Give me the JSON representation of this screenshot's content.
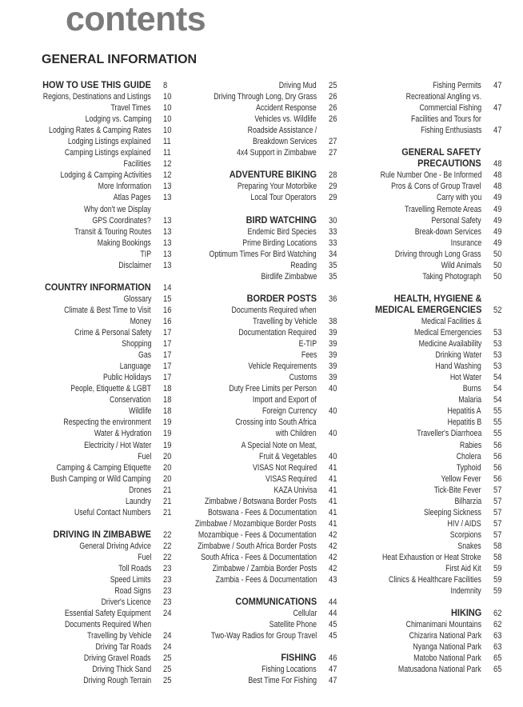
{
  "title": "contents",
  "section_title": "GENERAL INFORMATION",
  "columns": [
    [
      {
        "t": "HOW TO USE THIS GUIDE",
        "p": "8",
        "h": true
      },
      {
        "t": "Regions, Destinations and Listings",
        "p": "10"
      },
      {
        "t": "Travel Times",
        "p": "10"
      },
      {
        "t": "Lodging vs. Camping",
        "p": "10"
      },
      {
        "t": "Lodging Rates & Camping Rates",
        "p": "10"
      },
      {
        "t": "Lodging Listings explained",
        "p": "11"
      },
      {
        "t": "Camping Listings explained",
        "p": "11"
      },
      {
        "t": "Facilities",
        "p": "12"
      },
      {
        "t": "Lodging & Camping Activities",
        "p": "12"
      },
      {
        "t": "More Information",
        "p": "13"
      },
      {
        "t": "Atlas Pages",
        "p": "13"
      },
      {
        "t": "Why don't we Display",
        "p": ""
      },
      {
        "t": "GPS Coordinates?",
        "p": "13"
      },
      {
        "t": "Transit & Touring Routes",
        "p": "13"
      },
      {
        "t": "Making Bookings",
        "p": "13"
      },
      {
        "t": "TIP",
        "p": "13"
      },
      {
        "t": "Disclaimer",
        "p": "13"
      },
      {},
      {
        "t": "COUNTRY INFORMATION",
        "p": "14",
        "h": true
      },
      {
        "t": "Glossary",
        "p": "15"
      },
      {
        "t": "Climate & Best Time to Visit",
        "p": "16"
      },
      {
        "t": "Money",
        "p": "16"
      },
      {
        "t": "Crime & Personal Safety",
        "p": "17"
      },
      {
        "t": "Shopping",
        "p": "17"
      },
      {
        "t": "Gas",
        "p": "17"
      },
      {
        "t": "Language",
        "p": "17"
      },
      {
        "t": "Public Holidays",
        "p": "17"
      },
      {
        "t": "People, Etiquette & LGBT",
        "p": "18"
      },
      {
        "t": "Conservation",
        "p": "18"
      },
      {
        "t": "Wildlife",
        "p": "18"
      },
      {
        "t": "Respecting the environment",
        "p": "19"
      },
      {
        "t": "Water & Hydration",
        "p": "19"
      },
      {
        "t": "Electricity / Hot Water",
        "p": "19"
      },
      {
        "t": "Fuel",
        "p": "20"
      },
      {
        "t": "Camping & Camping Etiquette",
        "p": "20"
      },
      {
        "t": "Bush Camping or Wild Camping",
        "p": "20"
      },
      {
        "t": "Drones",
        "p": "21"
      },
      {
        "t": "Laundry",
        "p": "21"
      },
      {
        "t": "Useful Contact Numbers",
        "p": "21"
      },
      {},
      {
        "t": "DRIVING IN ZIMBABWE",
        "p": "22",
        "h": true
      },
      {
        "t": "General Driving Advice",
        "p": "22"
      },
      {
        "t": "Fuel",
        "p": "22"
      },
      {
        "t": "Toll Roads",
        "p": "23"
      },
      {
        "t": "Speed Limits",
        "p": "23"
      },
      {
        "t": "Road Signs",
        "p": "23"
      },
      {
        "t": "Driver's Licence",
        "p": "23"
      },
      {
        "t": "Essential Safety Equipment",
        "p": "24"
      },
      {
        "t": "Documents Required When",
        "p": ""
      },
      {
        "t": "Travelling by Vehicle",
        "p": "24"
      },
      {
        "t": "Driving Tar Roads",
        "p": "24"
      },
      {
        "t": "Driving Gravel Roads",
        "p": "25"
      },
      {
        "t": "Driving Thick Sand",
        "p": "25"
      },
      {
        "t": "Driving Rough Terrain",
        "p": "25"
      }
    ],
    [
      {
        "t": "Driving Mud",
        "p": "25"
      },
      {
        "t": "Driving Through Long, Dry Grass",
        "p": "26"
      },
      {
        "t": "Accident Response",
        "p": "26"
      },
      {
        "t": "Vehicles vs. Wildlife",
        "p": "26"
      },
      {
        "t": "Roadside Assistance /",
        "p": ""
      },
      {
        "t": "Breakdown Services",
        "p": "27"
      },
      {
        "t": "4x4 Support in Zimbabwe",
        "p": "27"
      },
      {},
      {
        "t": "ADVENTURE BIKING",
        "p": "28",
        "h": true
      },
      {
        "t": "Preparing Your Motorbike",
        "p": "29"
      },
      {
        "t": "Local Tour Operators",
        "p": "29"
      },
      {},
      {
        "t": "BIRD WATCHING",
        "p": "30",
        "h": true
      },
      {
        "t": "Endemic Bird Species",
        "p": "33"
      },
      {
        "t": "Prime Birding Locations",
        "p": "33"
      },
      {
        "t": "Optimum Times For Bird Watching",
        "p": "34"
      },
      {
        "t": "Reading",
        "p": "35"
      },
      {
        "t": "Birdlife Zimbabwe",
        "p": "35"
      },
      {},
      {
        "t": "BORDER POSTS",
        "p": "36",
        "h": true
      },
      {
        "t": "Documents Required when",
        "p": ""
      },
      {
        "t": "Travelling by Vehicle",
        "p": "38"
      },
      {
        "t": "Documentation Required",
        "p": "39"
      },
      {
        "t": "E-TIP",
        "p": "39"
      },
      {
        "t": "Fees",
        "p": "39"
      },
      {
        "t": "Vehicle Requirements",
        "p": "39"
      },
      {
        "t": "Customs",
        "p": "39"
      },
      {
        "t": "Duty Free Limits per Person",
        "p": "40"
      },
      {
        "t": "Import and Export of",
        "p": ""
      },
      {
        "t": "Foreign Currency",
        "p": "40"
      },
      {
        "t": "Crossing into South Africa",
        "p": ""
      },
      {
        "t": "with Children",
        "p": "40"
      },
      {
        "t": "A Special Note on Meat,",
        "p": ""
      },
      {
        "t": "Fruit & Vegetables",
        "p": "40"
      },
      {
        "t": "VISAS Not Required",
        "p": "41"
      },
      {
        "t": "VISAS Required",
        "p": "41"
      },
      {
        "t": "KAZA Univisa",
        "p": "41"
      },
      {
        "t": "Zimbabwe / Botswana Border Posts",
        "p": "41"
      },
      {
        "t": "Botswana - Fees & Documentation",
        "p": "41"
      },
      {
        "t": "Zimbabwe / Mozambique Border Posts",
        "p": "41"
      },
      {
        "t": "Mozambique - Fees & Documentation",
        "p": "42"
      },
      {
        "t": "Zimbabwe / South Africa Border Posts",
        "p": "42"
      },
      {
        "t": "South Africa - Fees & Documentation",
        "p": "42"
      },
      {
        "t": "Zimbabwe / Zambia Border Posts",
        "p": "42"
      },
      {
        "t": "Zambia - Fees & Documentation",
        "p": "43"
      },
      {},
      {
        "t": "COMMUNICATIONS",
        "p": "44",
        "h": true
      },
      {
        "t": "Cellular",
        "p": "44"
      },
      {
        "t": "Satellite Phone",
        "p": "45"
      },
      {
        "t": "Two-Way Radios for Group Travel",
        "p": "45"
      },
      {},
      {
        "t": "FISHING",
        "p": "46",
        "h": true
      },
      {
        "t": "Fishing Locations",
        "p": "47"
      },
      {
        "t": "Best Time For Fishing",
        "p": "47"
      }
    ],
    [
      {
        "t": "Fishing Permits",
        "p": "47"
      },
      {
        "t": "Recreational Angling vs.",
        "p": ""
      },
      {
        "t": "Commercial Fishing",
        "p": "47"
      },
      {
        "t": "Facilities and Tours for",
        "p": ""
      },
      {
        "t": "Fishing Enthusiasts",
        "p": "47"
      },
      {},
      {
        "t": "GENERAL SAFETY",
        "p": "",
        "h": true
      },
      {
        "t": "PRECAUTIONS",
        "p": "48",
        "h": true
      },
      {
        "t": "Rule Number One - Be Informed",
        "p": "48"
      },
      {
        "t": "Pros & Cons of Group Travel",
        "p": "48"
      },
      {
        "t": "Carry with you",
        "p": "49"
      },
      {
        "t": "Travelling Remote Areas",
        "p": "49"
      },
      {
        "t": "Personal Safety",
        "p": "49"
      },
      {
        "t": "Break-down Services",
        "p": "49"
      },
      {
        "t": "Insurance",
        "p": "49"
      },
      {
        "t": "Driving through Long Grass",
        "p": "50"
      },
      {
        "t": "Wild Animals",
        "p": "50"
      },
      {
        "t": "Taking Photograph",
        "p": "50"
      },
      {},
      {
        "t": "HEALTH, HYGIENE &",
        "p": "",
        "h": true
      },
      {
        "t": "MEDICAL EMERGENCIES",
        "p": "52",
        "h": true
      },
      {
        "t": "Medical Facilities &",
        "p": ""
      },
      {
        "t": "Medical Emergencies",
        "p": "53"
      },
      {
        "t": "Medicine Availability",
        "p": "53"
      },
      {
        "t": "Drinking Water",
        "p": "53"
      },
      {
        "t": "Hand Washing",
        "p": "53"
      },
      {
        "t": "Hot Water",
        "p": "54"
      },
      {
        "t": "Burns",
        "p": "54"
      },
      {
        "t": "Malaria",
        "p": "54"
      },
      {
        "t": "Hepatitis A",
        "p": "55"
      },
      {
        "t": "Hepatitis B",
        "p": "55"
      },
      {
        "t": "Traveller's Diarrhoea",
        "p": "55"
      },
      {
        "t": "Rabies",
        "p": "56"
      },
      {
        "t": "Cholera",
        "p": "56"
      },
      {
        "t": "Typhoid",
        "p": "56"
      },
      {
        "t": "Yellow Fever",
        "p": "56"
      },
      {
        "t": "Tick-Bite Fever",
        "p": "57"
      },
      {
        "t": "Bilharzia",
        "p": "57"
      },
      {
        "t": "Sleeping Sickness",
        "p": "57"
      },
      {
        "t": "HIV / AIDS",
        "p": "57"
      },
      {
        "t": "Scorpions",
        "p": "57"
      },
      {
        "t": "Snakes",
        "p": "58"
      },
      {
        "t": "Heat Exhaustion or Heat Stroke",
        "p": "58"
      },
      {
        "t": "First Aid Kit",
        "p": "59"
      },
      {
        "t": "Clinics & Healthcare Facilities",
        "p": "59"
      },
      {
        "t": "Indemnity",
        "p": "59"
      },
      {},
      {
        "t": "HIKING",
        "p": "62",
        "h": true
      },
      {
        "t": "Chimanimani Mountains",
        "p": "62"
      },
      {
        "t": "Chizarira National Park",
        "p": "63"
      },
      {
        "t": "Nyanga National Park",
        "p": "63"
      },
      {
        "t": "Matobo National Park",
        "p": "65"
      },
      {
        "t": "Matusadona National Park",
        "p": "65"
      }
    ]
  ]
}
